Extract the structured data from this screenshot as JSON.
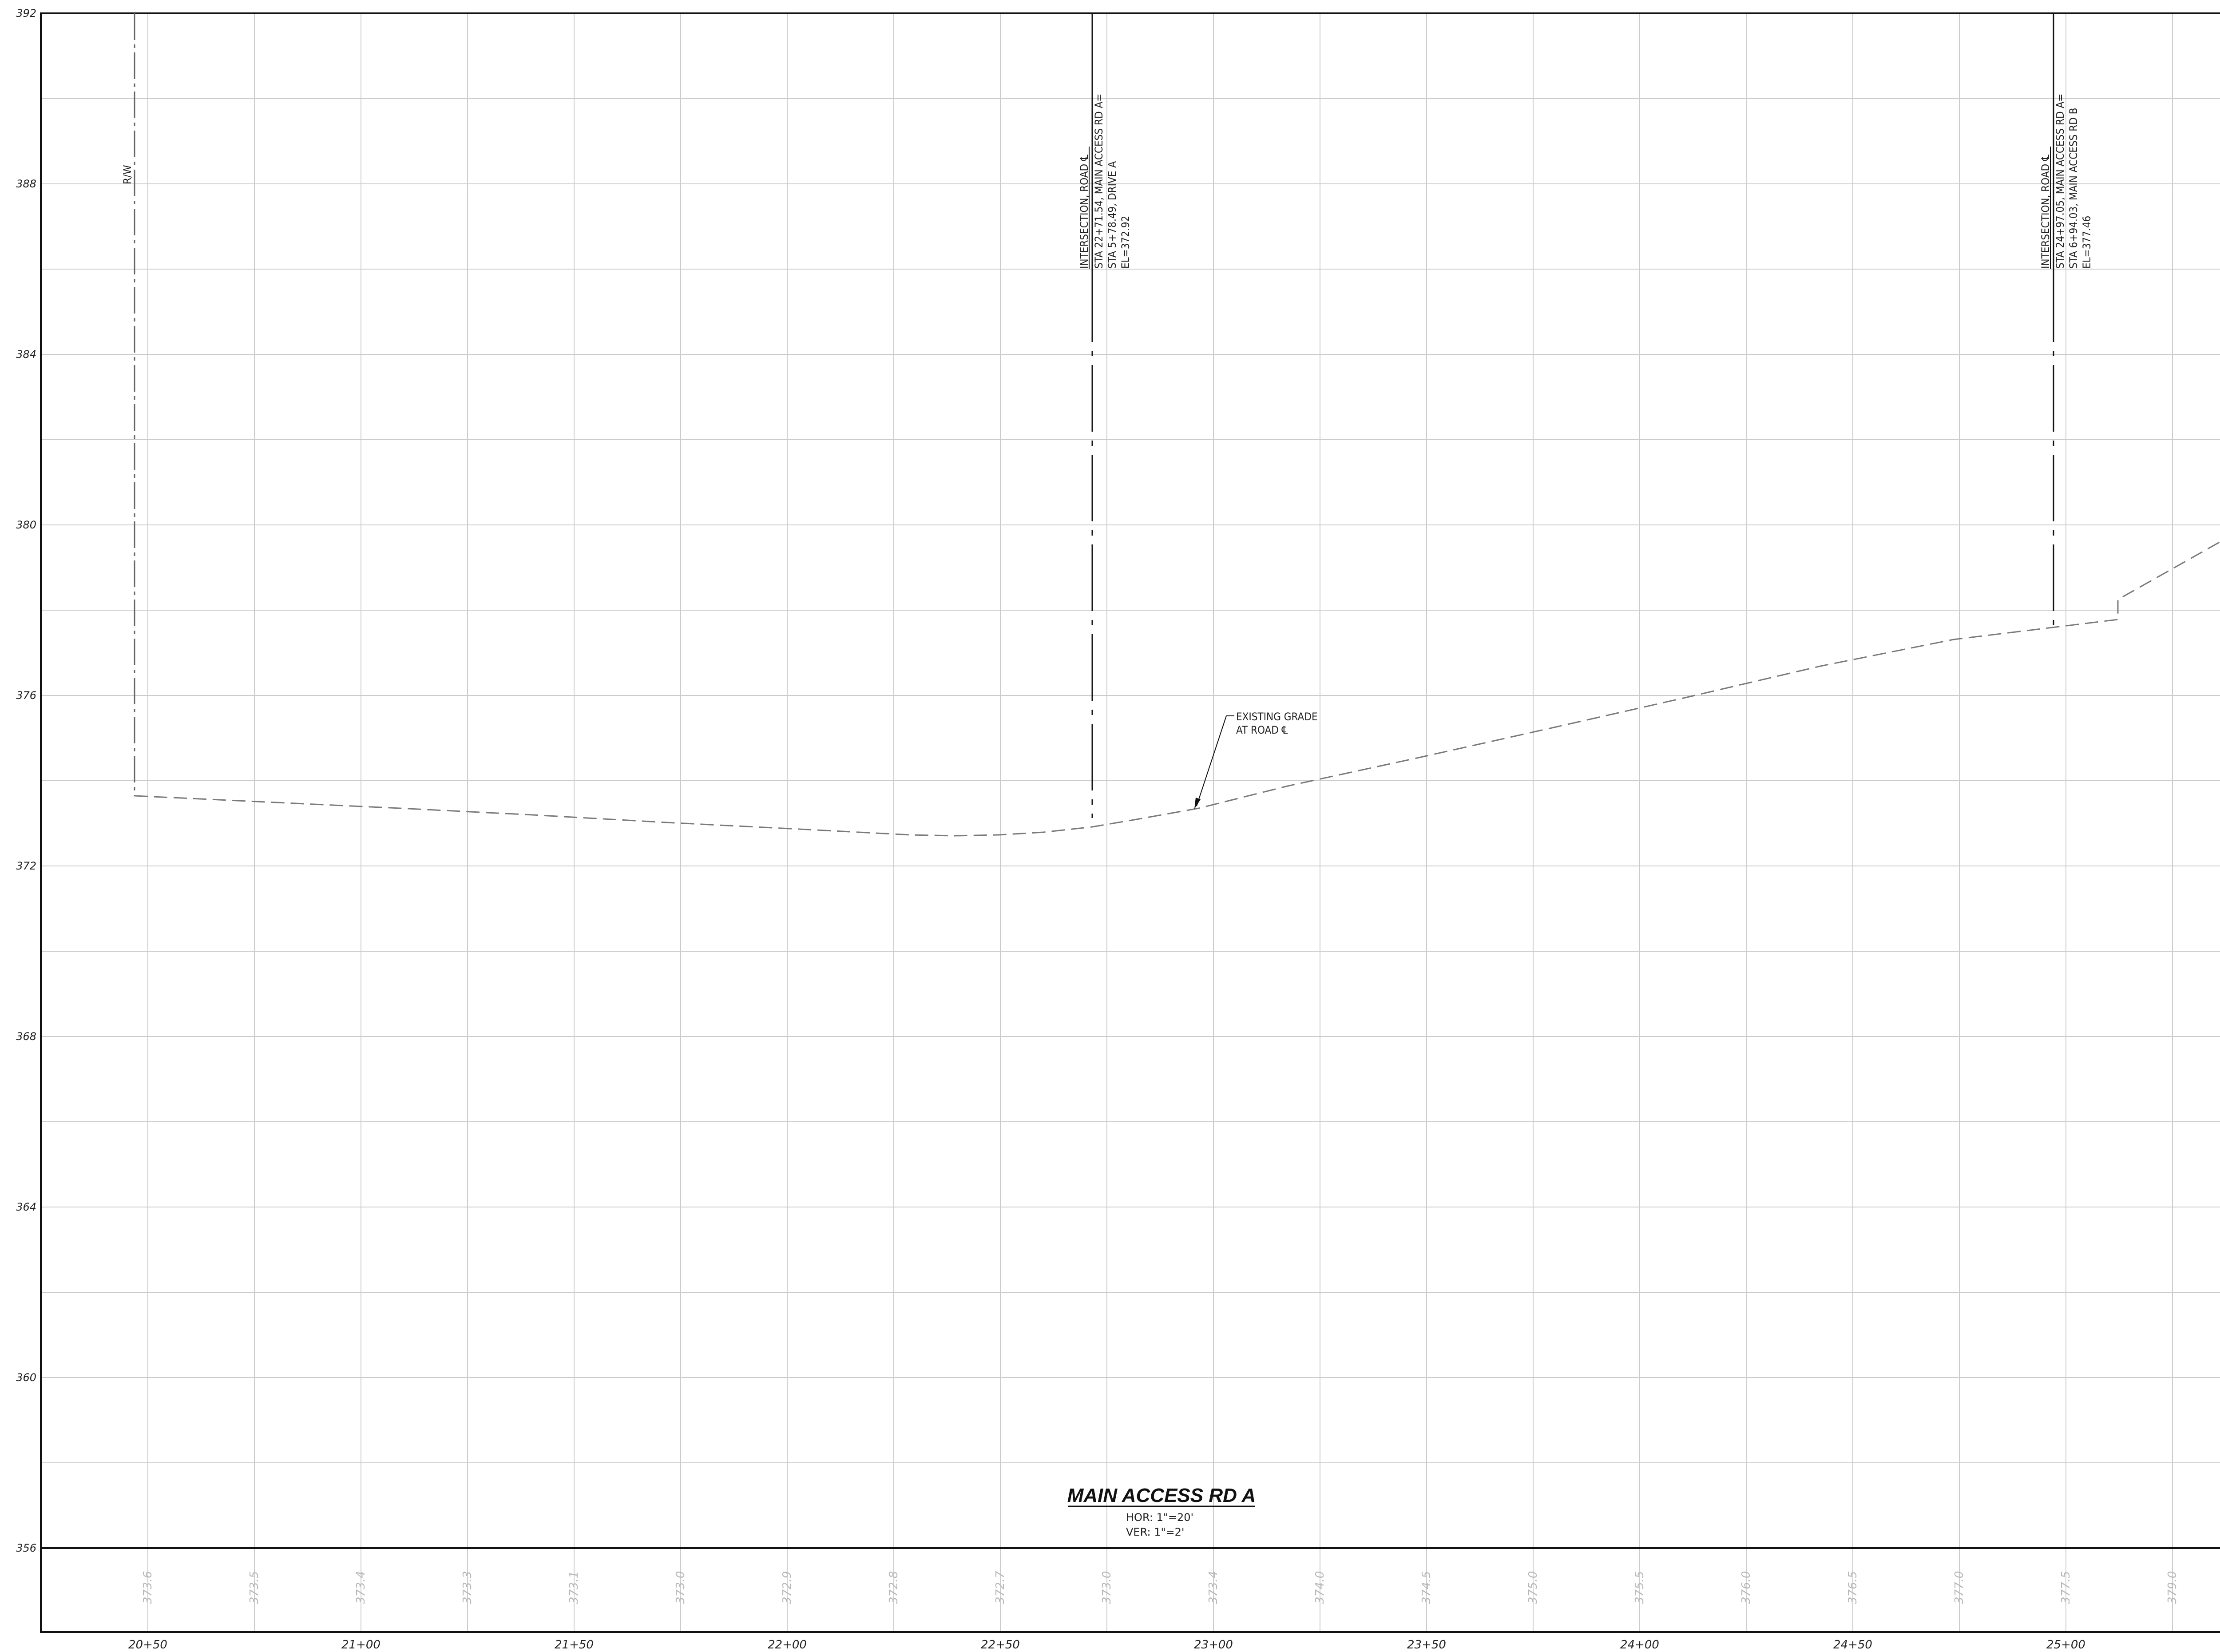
{
  "drawing": {
    "title": "MAIN ACCESS RD A",
    "scale": {
      "hor": "HOR:  1\"=20'",
      "ver": "VER:  1\"=2'"
    },
    "elevation_axis": {
      "min": 356,
      "max": 392,
      "labels": [
        "392",
        "388",
        "384",
        "380",
        "376",
        "372",
        "368",
        "364",
        "360",
        "356"
      ]
    },
    "stations": [
      "20+50",
      "21+00",
      "21+50",
      "22+00",
      "22+50",
      "23+00",
      "23+50",
      "24+00",
      "24+50",
      "25+00"
    ],
    "existing_ground_values": [
      "373.6",
      "373.5",
      "373.4",
      "373.3",
      "373.1",
      "373.0",
      "372.9",
      "372.8",
      "372.7",
      "373.0",
      "373.4",
      "374.0",
      "374.5",
      "375.0",
      "375.5",
      "376.0",
      "376.5",
      "377.0",
      "377.5",
      "379.0"
    ],
    "row_label": "R/W",
    "callouts": {
      "existing_grade": [
        "EXISTING GRADE",
        "AT ROAD ℄"
      ],
      "intersection_1": [
        "INTERSECTION, ROAD ℄",
        "STA 22+71.54, MAIN ACCESS RD A=",
        "STA 5+78.49, DRIVE A",
        "EL=372.92"
      ],
      "intersection_2": [
        "INTERSECTION, ROAD ℄",
        "STA 24+97.05, MAIN ACCESS RD A=",
        "STA 6+94.03, MAIN ACCESS RD B",
        "EL=377.46"
      ]
    },
    "colors": {
      "grid": "#cccccc",
      "line": "#111111",
      "ground": "#7a7a7a",
      "ground_text": "#b8b8b8"
    }
  }
}
